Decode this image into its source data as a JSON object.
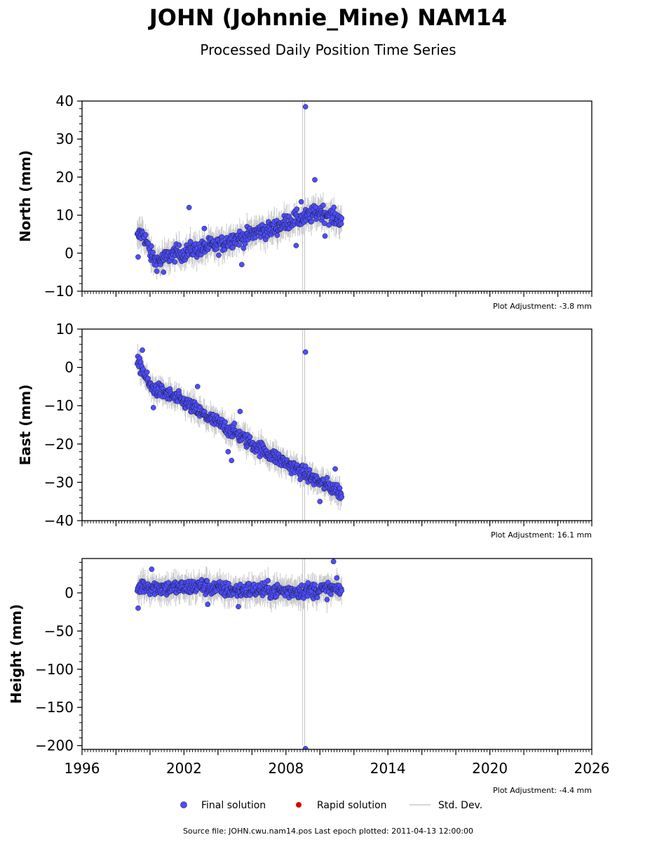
{
  "figure": {
    "title": "JOHN (Johnnie_Mine) NAM14",
    "subtitle": "Processed Daily Position Time Series",
    "source_note": "Source file: JOHN.cwu.nam14.pos  Last epoch plotted: 2011-04-13 12:00:00"
  },
  "legend": {
    "final_label": "Final solution",
    "rapid_label": "Rapid solution",
    "std_label": "Std. Dev."
  },
  "colors": {
    "final_fill": "#4d4dff",
    "final_edge": "#1a1a33",
    "rapid_fill": "#dd0000",
    "std_dev": "#c8c8c8"
  },
  "chart_data": [
    {
      "type": "scatter",
      "ylabel": "North (mm)",
      "xlim": [
        1996,
        2026
      ],
      "ylim": [
        -10,
        40
      ],
      "yticks": [
        -10,
        0,
        10,
        20,
        30,
        40
      ],
      "xticks": [
        1996,
        2002,
        2008,
        2014,
        2020,
        2026
      ],
      "adjustment": "Plot Adjustment: -3.8 mm",
      "data_span": [
        1999.25,
        2011.28
      ],
      "series": [
        {
          "name": "Final solution",
          "x": [
            1999.25,
            1999.4,
            1999.6,
            1999.8,
            2000.0,
            2000.3,
            2000.6,
            2001.0,
            2001.5,
            2002.0,
            2002.5,
            2003.0,
            2003.5,
            2004.0,
            2004.5,
            2005.0,
            2005.5,
            2006.0,
            2006.5,
            2007.0,
            2007.5,
            2008.0,
            2008.5,
            2009.0,
            2009.5,
            2010.0,
            2010.5,
            2011.0,
            2011.28
          ],
          "y": [
            4,
            5,
            5,
            3,
            0,
            -2,
            -2,
            -1,
            0,
            0,
            1,
            1,
            2,
            2,
            3,
            4,
            4,
            5,
            6,
            6,
            7,
            8,
            9,
            9,
            10,
            11,
            10,
            9,
            9
          ]
        }
      ],
      "outliers": {
        "x": [
          2002.3,
          2009.15,
          2009.7,
          1999.3,
          2003.2,
          2005.4,
          2008.6,
          2010.3,
          2000.8,
          2008.9
        ],
        "y": [
          12,
          38.5,
          19.3,
          -1,
          6.5,
          -3,
          2,
          4.5,
          -5,
          13.5
        ]
      },
      "std_dev": {
        "typical": 2.5,
        "spike_x": 2009.1,
        "spike_range": [
          -10,
          40
        ]
      }
    },
    {
      "type": "scatter",
      "ylabel": "East (mm)",
      "xlim": [
        1996,
        2026
      ],
      "ylim": [
        -40,
        10
      ],
      "yticks": [
        -40,
        -30,
        -20,
        -10,
        0,
        10
      ],
      "xticks": [
        1996,
        2002,
        2008,
        2014,
        2020,
        2026
      ],
      "adjustment": "Plot Adjustment: 16.1 mm",
      "data_span": [
        1999.25,
        2011.28
      ],
      "series": [
        {
          "name": "Final solution",
          "x": [
            1999.25,
            1999.5,
            1999.8,
            2000.0,
            2001.0,
            2002.0,
            2003.0,
            2004.0,
            2005.0,
            2006.0,
            2007.0,
            2008.0,
            2009.0,
            2010.0,
            2011.0,
            2011.28
          ],
          "y": [
            1,
            0,
            -3,
            -5,
            -7,
            -9,
            -12,
            -14.5,
            -17,
            -20,
            -22.5,
            -25,
            -27.5,
            -30,
            -32,
            -33
          ]
        }
      ],
      "outliers": {
        "x": [
          2009.15,
          1999.55,
          2000.2,
          2004.6,
          2004.8,
          2005.3,
          2002.8,
          2010.0,
          2010.9
        ],
        "y": [
          4,
          4.5,
          -10.5,
          -22,
          -24.3,
          -11.5,
          -5,
          -35,
          -26.5
        ]
      },
      "std_dev": {
        "typical": 2.2,
        "spike_x": 2009.1,
        "spike_range": [
          -40,
          10
        ]
      }
    },
    {
      "type": "scatter",
      "ylabel": "Height (mm)",
      "xlim": [
        1996,
        2026
      ],
      "ylim": [
        -205,
        45
      ],
      "yticks": [
        -200,
        -150,
        -100,
        -50,
        0
      ],
      "xticks": [
        1996,
        2002,
        2008,
        2014,
        2020,
        2026
      ],
      "adjustment": "Plot Adjustment: -4.4 mm",
      "data_span": [
        1999.25,
        2011.28
      ],
      "series": [
        {
          "name": "Final solution",
          "x": [
            1999.25,
            1999.6,
            2000.0,
            2001.0,
            2002.0,
            2003.0,
            2004.0,
            2005.0,
            2006.0,
            2007.0,
            2008.0,
            2009.0,
            2010.0,
            2011.0,
            2011.28
          ],
          "y": [
            5,
            10,
            8,
            6,
            7,
            9,
            5,
            3,
            4,
            3,
            2,
            3,
            4,
            5,
            3
          ]
        }
      ],
      "outliers": {
        "x": [
          2010.8,
          2009.15,
          2000.1,
          1999.3,
          2003.4,
          2005.2
        ],
        "y": [
          41,
          -204,
          31,
          -20,
          -15,
          -18
        ]
      },
      "std_dev": {
        "typical": 12,
        "spike_x": 2009.1,
        "spike_range": [
          -200,
          45
        ]
      }
    }
  ]
}
